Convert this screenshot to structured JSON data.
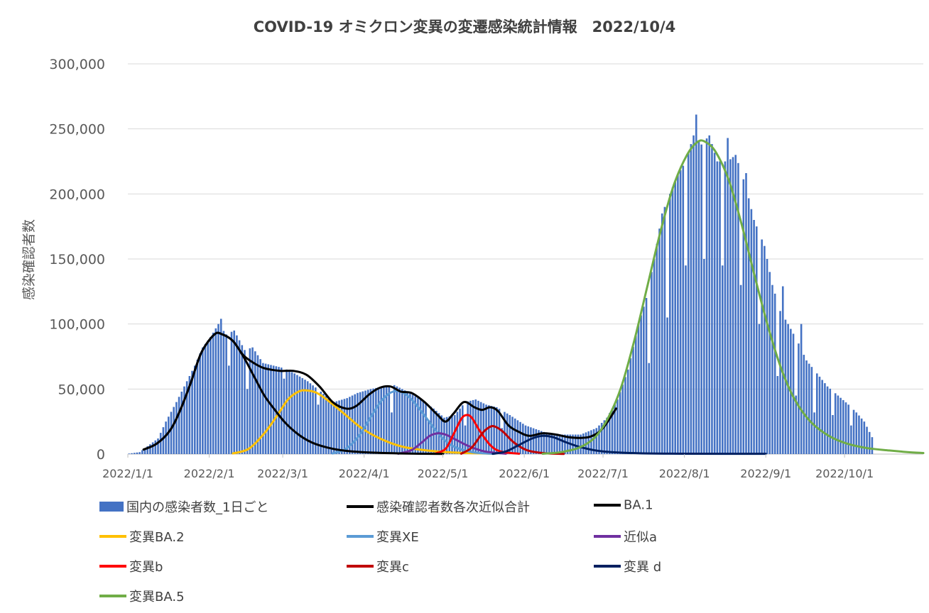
{
  "chart_data": {
    "type": "bar",
    "title": "COVID-19 オミクロン変異の変遷感染統計情報　2022/10/4",
    "ylabel": "感染確認者数",
    "xlabel": "",
    "ylim": [
      0,
      300000
    ],
    "y_ticks": [
      "0",
      "50,000",
      "100,000",
      "150,000",
      "200,000",
      "250,000",
      "300,000"
    ],
    "x_ticks": [
      "2022/1/1",
      "2022/2/1",
      "2022/3/1",
      "2022/4/1",
      "2022/5/1",
      "2022/6/1",
      "2022/7/1",
      "2022/8/1",
      "2022/9/1",
      "2022/10/1"
    ],
    "x_tick_dates": [
      "2022-01-01",
      "2022-02-01",
      "2022-03-01",
      "2022-04-01",
      "2022-05-01",
      "2022-06-01",
      "2022-07-01",
      "2022-08-01",
      "2022-09-01",
      "2022-10-01"
    ],
    "x_start_date": "2022-01-01",
    "x_end_date": "2022-10-31",
    "grid": true,
    "legend_position": "bottom",
    "bars": {
      "name": "国内の感染者数_1日ごと",
      "color": "#4472C4",
      "anchors": [
        [
          "2022-01-01",
          400
        ],
        [
          "2022-01-05",
          1500
        ],
        [
          "2022-01-08",
          6000
        ],
        [
          "2022-01-12",
          12000
        ],
        [
          "2022-01-15",
          25000
        ],
        [
          "2022-01-19",
          40000
        ],
        [
          "2022-01-22",
          52000
        ],
        [
          "2022-01-26",
          68000
        ],
        [
          "2022-01-29",
          82000
        ],
        [
          "2022-02-01",
          90000
        ],
        [
          "2022-02-04",
          100000
        ],
        [
          "2022-02-07",
          92000
        ],
        [
          "2022-02-10",
          95000
        ],
        [
          "2022-02-14",
          80000
        ],
        [
          "2022-02-17",
          82000
        ],
        [
          "2022-02-21",
          70000
        ],
        [
          "2022-02-25",
          68000
        ],
        [
          "2022-03-01",
          66000
        ],
        [
          "2022-03-05",
          62000
        ],
        [
          "2022-03-10",
          56000
        ],
        [
          "2022-03-15",
          48000
        ],
        [
          "2022-03-20",
          40000
        ],
        [
          "2022-03-25",
          43000
        ],
        [
          "2022-03-29",
          47000
        ],
        [
          "2022-04-03",
          50000
        ],
        [
          "2022-04-08",
          52000
        ],
        [
          "2022-04-12",
          53000
        ],
        [
          "2022-04-17",
          48000
        ],
        [
          "2022-04-22",
          42000
        ],
        [
          "2022-04-27",
          35000
        ],
        [
          "2022-05-01",
          28000
        ],
        [
          "2022-05-05",
          30000
        ],
        [
          "2022-05-09",
          40000
        ],
        [
          "2022-05-13",
          42000
        ],
        [
          "2022-05-17",
          38000
        ],
        [
          "2022-05-21",
          36000
        ],
        [
          "2022-05-26",
          30000
        ],
        [
          "2022-06-01",
          22000
        ],
        [
          "2022-06-08",
          17000
        ],
        [
          "2022-06-15",
          15000
        ],
        [
          "2022-06-22",
          15000
        ],
        [
          "2022-06-28",
          20000
        ],
        [
          "2022-07-02",
          28000
        ],
        [
          "2022-07-06",
          42000
        ],
        [
          "2022-07-10",
          65000
        ],
        [
          "2022-07-14",
          100000
        ],
        [
          "2022-07-17",
          120000
        ],
        [
          "2022-07-20",
          150000
        ],
        [
          "2022-07-23",
          185000
        ],
        [
          "2022-07-26",
          200000
        ],
        [
          "2022-07-29",
          215000
        ],
        [
          "2022-08-01",
          225000
        ],
        [
          "2022-08-04",
          245000
        ],
        [
          "2022-08-07",
          238000
        ],
        [
          "2022-08-10",
          245000
        ],
        [
          "2022-08-13",
          225000
        ],
        [
          "2022-08-17",
          225000
        ],
        [
          "2022-08-20",
          230000
        ],
        [
          "2022-08-24",
          205000
        ],
        [
          "2022-08-27",
          180000
        ],
        [
          "2022-08-31",
          160000
        ],
        [
          "2022-09-03",
          130000
        ],
        [
          "2022-09-06",
          110000
        ],
        [
          "2022-09-09",
          100000
        ],
        [
          "2022-09-13",
          85000
        ],
        [
          "2022-09-16",
          72000
        ],
        [
          "2022-09-20",
          62000
        ],
        [
          "2022-09-24",
          52000
        ],
        [
          "2022-09-28",
          45000
        ],
        [
          "2022-10-02",
          38000
        ],
        [
          "2022-10-05",
          32000
        ],
        [
          "2022-10-08",
          25000
        ],
        [
          "2022-10-11",
          13000
        ]
      ],
      "dips": [
        [
          "2022-02-08",
          68000
        ],
        [
          "2022-02-15",
          50000
        ],
        [
          "2022-03-01",
          58000
        ],
        [
          "2022-03-14",
          38000
        ],
        [
          "2022-04-11",
          32000
        ],
        [
          "2022-04-25",
          26000
        ],
        [
          "2022-05-09",
          22000
        ],
        [
          "2022-05-23",
          20000
        ],
        [
          "2022-07-18",
          70000
        ],
        [
          "2022-07-25",
          105000
        ],
        [
          "2022-08-01",
          145000
        ],
        [
          "2022-08-08",
          150000
        ],
        [
          "2022-08-15",
          145000
        ],
        [
          "2022-08-22",
          130000
        ],
        [
          "2022-08-29",
          100000
        ],
        [
          "2022-09-05",
          60000
        ],
        [
          "2022-09-12",
          45000
        ],
        [
          "2022-09-19",
          32000
        ],
        [
          "2022-09-26",
          30000
        ],
        [
          "2022-10-03",
          22000
        ]
      ],
      "spikes": [
        [
          "2022-02-05",
          104000
        ],
        [
          "2022-08-05",
          261000
        ],
        [
          "2022-08-17",
          243000
        ],
        [
          "2022-08-24",
          216000
        ],
        [
          "2022-09-07",
          129000
        ],
        [
          "2022-09-14",
          100000
        ]
      ]
    },
    "series": [
      {
        "name": "感染確認者数各次近似合計",
        "color": "#000000",
        "points": [
          [
            "2022-01-07",
            3500
          ],
          [
            "2022-01-12",
            8000
          ],
          [
            "2022-01-17",
            18000
          ],
          [
            "2022-01-21",
            34000
          ],
          [
            "2022-01-25",
            55000
          ],
          [
            "2022-01-29",
            78000
          ],
          [
            "2022-02-03",
            92000
          ],
          [
            "2022-02-06",
            92000
          ],
          [
            "2022-02-10",
            87000
          ],
          [
            "2022-02-14",
            76000
          ],
          [
            "2022-02-18",
            70000
          ],
          [
            "2022-02-22",
            66000
          ],
          [
            "2022-02-28",
            64000
          ],
          [
            "2022-03-05",
            64000
          ],
          [
            "2022-03-10",
            61000
          ],
          [
            "2022-03-15",
            52000
          ],
          [
            "2022-03-20",
            40000
          ],
          [
            "2022-03-25",
            35000
          ],
          [
            "2022-03-29",
            37000
          ],
          [
            "2022-04-03",
            46000
          ],
          [
            "2022-04-07",
            51000
          ],
          [
            "2022-04-11",
            52000
          ],
          [
            "2022-04-15",
            48000
          ],
          [
            "2022-04-19",
            47000
          ],
          [
            "2022-04-24",
            40000
          ],
          [
            "2022-04-29",
            30000
          ],
          [
            "2022-05-02",
            25000
          ],
          [
            "2022-05-05",
            31000
          ],
          [
            "2022-05-09",
            40000
          ],
          [
            "2022-05-13",
            36000
          ],
          [
            "2022-05-16",
            34000
          ],
          [
            "2022-05-19",
            36000
          ],
          [
            "2022-05-22",
            33000
          ],
          [
            "2022-05-26",
            22000
          ],
          [
            "2022-05-30",
            17000
          ],
          [
            "2022-06-03",
            14000
          ],
          [
            "2022-06-08",
            16000
          ],
          [
            "2022-06-13",
            15000
          ],
          [
            "2022-06-18",
            13000
          ],
          [
            "2022-06-23",
            12500
          ],
          [
            "2022-06-27",
            14000
          ],
          [
            "2022-07-01",
            20000
          ],
          [
            "2022-07-06",
            35000
          ]
        ]
      },
      {
        "name": "BA.1",
        "color": "#000000",
        "points": [
          [
            "2022-01-07",
            3500
          ],
          [
            "2022-01-12",
            8000
          ],
          [
            "2022-01-17",
            18000
          ],
          [
            "2022-01-21",
            34000
          ],
          [
            "2022-01-25",
            55000
          ],
          [
            "2022-01-29",
            78000
          ],
          [
            "2022-02-03",
            92000
          ],
          [
            "2022-02-06",
            92000
          ],
          [
            "2022-02-10",
            87000
          ],
          [
            "2022-02-14",
            75000
          ],
          [
            "2022-02-18",
            60000
          ],
          [
            "2022-02-22",
            45000
          ],
          [
            "2022-02-26",
            34000
          ],
          [
            "2022-03-02",
            24000
          ],
          [
            "2022-03-07",
            15000
          ],
          [
            "2022-03-12",
            9000
          ],
          [
            "2022-03-18",
            5000
          ],
          [
            "2022-03-25",
            2500
          ],
          [
            "2022-04-03",
            1200
          ],
          [
            "2022-04-15",
            500
          ],
          [
            "2022-05-01",
            100
          ]
        ]
      },
      {
        "name": "変異BA.2",
        "color": "#FFC000",
        "points": [
          [
            "2022-02-10",
            500
          ],
          [
            "2022-02-16",
            4000
          ],
          [
            "2022-02-22",
            16000
          ],
          [
            "2022-02-27",
            30000
          ],
          [
            "2022-03-03",
            42000
          ],
          [
            "2022-03-07",
            48000
          ],
          [
            "2022-03-10",
            49000
          ],
          [
            "2022-03-14",
            47000
          ],
          [
            "2022-03-19",
            40000
          ],
          [
            "2022-03-25",
            30000
          ],
          [
            "2022-03-31",
            20000
          ],
          [
            "2022-04-07",
            12000
          ],
          [
            "2022-04-15",
            6000
          ],
          [
            "2022-04-24",
            3000
          ],
          [
            "2022-05-05",
            1200
          ],
          [
            "2022-05-20",
            300
          ]
        ]
      },
      {
        "name": "変異XE",
        "color": "#5B9BD5",
        "points": [
          [
            "2022-03-20",
            500
          ],
          [
            "2022-03-25",
            4000
          ],
          [
            "2022-03-30",
            14000
          ],
          [
            "2022-04-04",
            30000
          ],
          [
            "2022-04-08",
            42000
          ],
          [
            "2022-04-12",
            48000
          ],
          [
            "2022-04-16",
            47000
          ],
          [
            "2022-04-20",
            40000
          ],
          [
            "2022-04-25",
            27000
          ],
          [
            "2022-04-30",
            14000
          ],
          [
            "2022-05-05",
            6000
          ],
          [
            "2022-05-12",
            1500
          ],
          [
            "2022-05-20",
            200
          ]
        ]
      },
      {
        "name": "近似a",
        "color": "#7030A0",
        "points": [
          [
            "2022-04-14",
            300
          ],
          [
            "2022-04-19",
            3000
          ],
          [
            "2022-04-23",
            9000
          ],
          [
            "2022-04-26",
            14000
          ],
          [
            "2022-04-29",
            16000
          ],
          [
            "2022-05-02",
            15000
          ],
          [
            "2022-05-06",
            11000
          ],
          [
            "2022-05-11",
            6000
          ],
          [
            "2022-05-17",
            2000
          ],
          [
            "2022-05-25",
            300
          ]
        ]
      },
      {
        "name": "変異b",
        "color": "#FF0000",
        "points": [
          [
            "2022-04-28",
            300
          ],
          [
            "2022-05-02",
            4000
          ],
          [
            "2022-05-05",
            15000
          ],
          [
            "2022-05-08",
            27000
          ],
          [
            "2022-05-10",
            30000
          ],
          [
            "2022-05-12",
            28000
          ],
          [
            "2022-05-15",
            18000
          ],
          [
            "2022-05-19",
            7000
          ],
          [
            "2022-05-23",
            2000
          ],
          [
            "2022-05-30",
            300
          ]
        ]
      },
      {
        "name": "変異c",
        "color": "#C00000",
        "points": [
          [
            "2022-05-08",
            300
          ],
          [
            "2022-05-12",
            5000
          ],
          [
            "2022-05-16",
            16000
          ],
          [
            "2022-05-19",
            21000
          ],
          [
            "2022-05-21",
            21000
          ],
          [
            "2022-05-24",
            17000
          ],
          [
            "2022-05-28",
            9000
          ],
          [
            "2022-06-02",
            3000
          ],
          [
            "2022-06-08",
            800
          ],
          [
            "2022-06-16",
            100
          ]
        ]
      },
      {
        "name": "変異 d",
        "color": "#002060",
        "points": [
          [
            "2022-05-20",
            200
          ],
          [
            "2022-05-25",
            2000
          ],
          [
            "2022-05-30",
            7000
          ],
          [
            "2022-06-04",
            12000
          ],
          [
            "2022-06-08",
            14000
          ],
          [
            "2022-06-12",
            13000
          ],
          [
            "2022-06-17",
            9000
          ],
          [
            "2022-06-23",
            5000
          ],
          [
            "2022-07-01",
            2000
          ],
          [
            "2022-07-15",
            600
          ],
          [
            "2022-08-01",
            300
          ],
          [
            "2022-09-01",
            200
          ]
        ]
      },
      {
        "name": "変異BA.5",
        "color": "#70AD47",
        "points": [
          [
            "2022-06-08",
            300
          ],
          [
            "2022-06-15",
            1500
          ],
          [
            "2022-06-22",
            5000
          ],
          [
            "2022-06-28",
            13000
          ],
          [
            "2022-07-03",
            28000
          ],
          [
            "2022-07-08",
            52000
          ],
          [
            "2022-07-13",
            88000
          ],
          [
            "2022-07-18",
            130000
          ],
          [
            "2022-07-23",
            172000
          ],
          [
            "2022-07-28",
            207000
          ],
          [
            "2022-08-02",
            230000
          ],
          [
            "2022-08-06",
            240000
          ],
          [
            "2022-08-09",
            240000
          ],
          [
            "2022-08-13",
            232000
          ],
          [
            "2022-08-18",
            210000
          ],
          [
            "2022-08-23",
            175000
          ],
          [
            "2022-08-28",
            135000
          ],
          [
            "2022-09-02",
            97000
          ],
          [
            "2022-09-07",
            65000
          ],
          [
            "2022-09-12",
            42000
          ],
          [
            "2022-09-18",
            25000
          ],
          [
            "2022-09-25",
            14000
          ],
          [
            "2022-10-02",
            8000
          ],
          [
            "2022-10-10",
            4500
          ],
          [
            "2022-10-18",
            2800
          ],
          [
            "2022-10-25",
            1500
          ],
          [
            "2022-10-31",
            800
          ]
        ]
      }
    ]
  }
}
